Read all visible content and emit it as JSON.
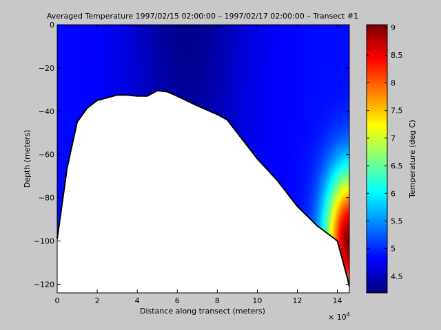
{
  "chart_data": {
    "type": "heatmap",
    "title": "Averaged Temperature  1997/02/15 02:00:00 – 1997/02/17 02:00:00 – Transect #1",
    "xlabel": "Distance along transect (meters)",
    "x_exponent_label": "× 10",
    "x_exponent_power": "4",
    "ylabel": "Depth (meters)",
    "colorbar_label": "Temperature (deg C)",
    "xlim": [
      0,
      14.6
    ],
    "ylim": [
      -124,
      0
    ],
    "xticks": [
      0,
      2,
      4,
      6,
      8,
      10,
      12,
      14
    ],
    "yticks": [
      0,
      -20,
      -40,
      -60,
      -80,
      -100,
      -120
    ],
    "colorbar_range": [
      4.2,
      9.05
    ],
    "colorbar_ticks": [
      "4.5",
      "5",
      "5.5",
      "6",
      "6.5",
      "7",
      "7.5",
      "8",
      "8.5",
      "9"
    ],
    "colormap": "jet",
    "bottom_profile": {
      "x": [
        0,
        0.5,
        1,
        1.5,
        2,
        3,
        3.5,
        4,
        4.5,
        5,
        5.5,
        6,
        7,
        8,
        8.5,
        10,
        11,
        12,
        13,
        13.5,
        14,
        14.5,
        14.6
      ],
      "depth": [
        -99,
        -66,
        -45,
        -38.5,
        -35,
        -32.5,
        -32.5,
        -33,
        -33,
        -30.5,
        -31,
        -33,
        -37.5,
        -41.5,
        -44,
        -62,
        -72,
        -84,
        -93,
        -96.5,
        -100,
        -117,
        -121
      ]
    },
    "temperature_field": {
      "background": 4.85,
      "cold_core_center_x": 6.5,
      "cold_core_temperature": 4.25,
      "warm_pocket_center": [
        14.6,
        -100
      ],
      "warm_pocket_max": 9.0
    },
    "colors": {
      "background": "#c8c8c8",
      "seafloor": "#ffffff",
      "outline": "#000000"
    }
  }
}
